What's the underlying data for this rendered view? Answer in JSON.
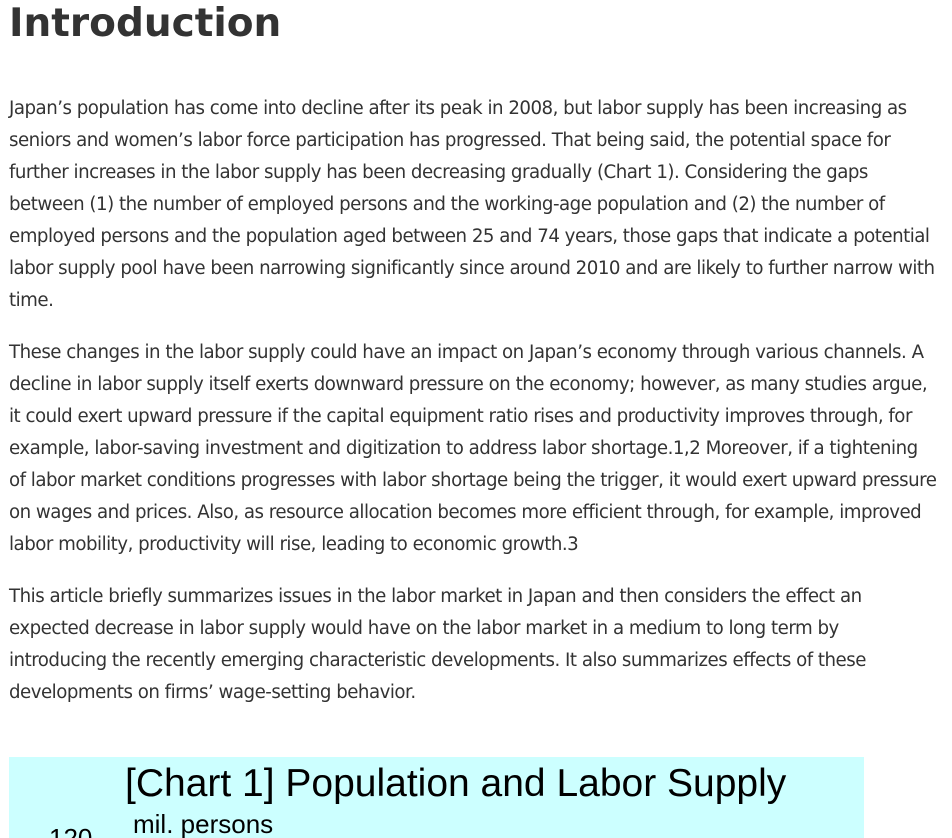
{
  "article": {
    "heading": "Introduction",
    "paragraphs": [
      "Japan’s population has come into decline after its peak in 2008, but labor supply has been increasing as seniors and women’s labor force participation has progressed. That being said, the potential space for further increases in the labor supply has been decreasing gradually (Chart 1). Considering the gaps between (1) the number of employed persons and the working-age population and (2) the number of employed persons and the population aged between 25 and 74 years, those gaps that indicate a potential labor supply pool have been narrowing significantly since around 2010 and are likely to further narrow with time.",
      "These changes in the labor supply could have an impact on Japan’s economy through various channels. A decline in labor supply itself exerts downward pressure on the economy; however, as many studies argue, it could exert upward pressure if the capital equipment ratio rises and productivity improves through, for example, labor-saving investment and digitization to address labor shortage.1,2 Moreover, if a tightening of labor market conditions progresses with labor shortage being the trigger, it would exert upward pressure on wages and prices. Also, as resource allocation becomes more efficient through, for example, improved labor mobility, productivity will rise, leading to economic growth.3",
      "This article briefly summarizes issues in the labor market in Japan and then considers the effect an expected decrease in labor supply would have on the labor market in a medium to long term by introducing the recently emerging characteristic developments. It also summarizes effects of these developments on firms’ wage-setting behavior."
    ]
  },
  "chart": {
    "title": "[Chart 1] Population and Labor Supply",
    "unit_label": "mil. persons",
    "first_tick": "120",
    "background_color": "#ccffff"
  }
}
